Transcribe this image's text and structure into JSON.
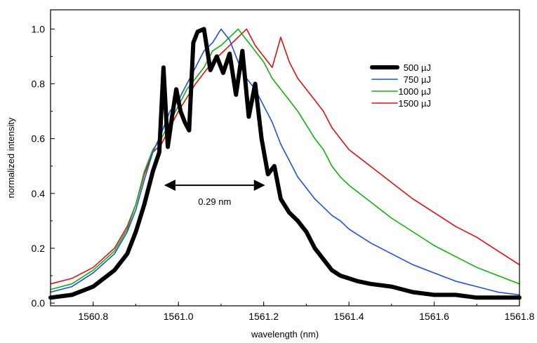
{
  "chart_data": {
    "type": "line",
    "title": "",
    "xlabel": "wavelength (nm)",
    "ylabel": "normalized intensity",
    "xlim": [
      1560.7,
      1561.8
    ],
    "ylim": [
      -0.01,
      1.07
    ],
    "xticks": [
      "1560.8",
      "1561.0",
      "1561.2",
      "1561.4",
      "1561.6",
      "1561.8"
    ],
    "yticks": [
      "0.0",
      "0.2",
      "0.4",
      "0.6",
      "0.8",
      "1.0"
    ],
    "grid": false,
    "legend_position": "top-right",
    "series": [
      {
        "name": "500 µJ",
        "color": "#000000",
        "x": [
          1560.7,
          1560.75,
          1560.8,
          1560.85,
          1560.88,
          1560.9,
          1560.92,
          1560.94,
          1560.955,
          1560.965,
          1560.975,
          1560.985,
          1560.995,
          1561.005,
          1561.015,
          1561.025,
          1561.035,
          1561.045,
          1561.06,
          1561.075,
          1561.09,
          1561.105,
          1561.12,
          1561.135,
          1561.15,
          1561.165,
          1561.18,
          1561.195,
          1561.21,
          1561.225,
          1561.24,
          1561.26,
          1561.28,
          1561.3,
          1561.32,
          1561.34,
          1561.36,
          1561.38,
          1561.4,
          1561.42,
          1561.45,
          1561.5,
          1561.55,
          1561.6,
          1561.65,
          1561.7,
          1561.75,
          1561.8
        ],
        "values": [
          0.02,
          0.03,
          0.06,
          0.12,
          0.18,
          0.26,
          0.36,
          0.48,
          0.55,
          0.86,
          0.57,
          0.68,
          0.78,
          0.7,
          0.66,
          0.63,
          0.95,
          0.99,
          1.0,
          0.85,
          0.9,
          0.84,
          0.91,
          0.76,
          0.92,
          0.68,
          0.8,
          0.6,
          0.47,
          0.5,
          0.38,
          0.33,
          0.3,
          0.26,
          0.2,
          0.16,
          0.12,
          0.1,
          0.09,
          0.08,
          0.07,
          0.06,
          0.04,
          0.03,
          0.03,
          0.02,
          0.02,
          0.02
        ]
      },
      {
        "name": "750 µJ",
        "color": "#1f4fe0",
        "x": [
          1560.7,
          1560.75,
          1560.8,
          1560.85,
          1560.88,
          1560.9,
          1560.92,
          1560.94,
          1560.96,
          1560.98,
          1561.0,
          1561.02,
          1561.04,
          1561.06,
          1561.08,
          1561.1,
          1561.12,
          1561.14,
          1561.16,
          1561.18,
          1561.2,
          1561.22,
          1561.24,
          1561.26,
          1561.28,
          1561.3,
          1561.32,
          1561.34,
          1561.36,
          1561.38,
          1561.4,
          1561.45,
          1561.5,
          1561.55,
          1561.6,
          1561.65,
          1561.7,
          1561.75,
          1561.8
        ],
        "values": [
          0.04,
          0.06,
          0.11,
          0.18,
          0.26,
          0.34,
          0.45,
          0.55,
          0.62,
          0.7,
          0.74,
          0.8,
          0.86,
          0.92,
          0.95,
          1.0,
          0.96,
          0.88,
          0.82,
          0.78,
          0.72,
          0.66,
          0.58,
          0.52,
          0.46,
          0.42,
          0.38,
          0.35,
          0.32,
          0.3,
          0.27,
          0.22,
          0.18,
          0.14,
          0.11,
          0.08,
          0.06,
          0.04,
          0.03
        ]
      },
      {
        "name": "1000 µJ",
        "color": "#10b010",
        "x": [
          1560.7,
          1560.75,
          1560.8,
          1560.85,
          1560.88,
          1560.9,
          1560.92,
          1560.94,
          1560.96,
          1560.98,
          1561.0,
          1561.02,
          1561.04,
          1561.06,
          1561.08,
          1561.1,
          1561.12,
          1561.14,
          1561.16,
          1561.18,
          1561.2,
          1561.22,
          1561.24,
          1561.26,
          1561.28,
          1561.3,
          1561.32,
          1561.34,
          1561.36,
          1561.38,
          1561.4,
          1561.45,
          1561.5,
          1561.55,
          1561.6,
          1561.65,
          1561.7,
          1561.75,
          1561.8
        ],
        "values": [
          0.05,
          0.07,
          0.12,
          0.19,
          0.27,
          0.36,
          0.48,
          0.56,
          0.6,
          0.66,
          0.72,
          0.78,
          0.82,
          0.86,
          0.92,
          0.94,
          0.97,
          1.0,
          0.96,
          0.92,
          0.88,
          0.82,
          0.78,
          0.74,
          0.7,
          0.65,
          0.6,
          0.56,
          0.5,
          0.46,
          0.43,
          0.37,
          0.31,
          0.26,
          0.21,
          0.17,
          0.13,
          0.1,
          0.07
        ]
      },
      {
        "name": "1500 µJ",
        "color": "#e01010",
        "x": [
          1560.7,
          1560.75,
          1560.8,
          1560.85,
          1560.88,
          1560.9,
          1560.92,
          1560.94,
          1560.96,
          1560.98,
          1561.0,
          1561.02,
          1561.04,
          1561.06,
          1561.08,
          1561.1,
          1561.12,
          1561.14,
          1561.16,
          1561.18,
          1561.2,
          1561.22,
          1561.24,
          1561.26,
          1561.28,
          1561.3,
          1561.32,
          1561.34,
          1561.36,
          1561.38,
          1561.4,
          1561.45,
          1561.5,
          1561.55,
          1561.6,
          1561.65,
          1561.7,
          1561.75,
          1561.8
        ],
        "values": [
          0.07,
          0.09,
          0.13,
          0.2,
          0.28,
          0.36,
          0.47,
          0.55,
          0.58,
          0.64,
          0.7,
          0.75,
          0.8,
          0.84,
          0.88,
          0.91,
          0.94,
          0.97,
          1.0,
          0.94,
          0.9,
          0.86,
          0.97,
          0.88,
          0.82,
          0.78,
          0.74,
          0.7,
          0.64,
          0.6,
          0.56,
          0.5,
          0.44,
          0.38,
          0.33,
          0.28,
          0.24,
          0.19,
          0.14
        ]
      }
    ],
    "annotations": [
      {
        "text": "0.29 nm",
        "x_start": 1560.96,
        "x_end": 1561.21,
        "y": 0.43
      }
    ]
  }
}
